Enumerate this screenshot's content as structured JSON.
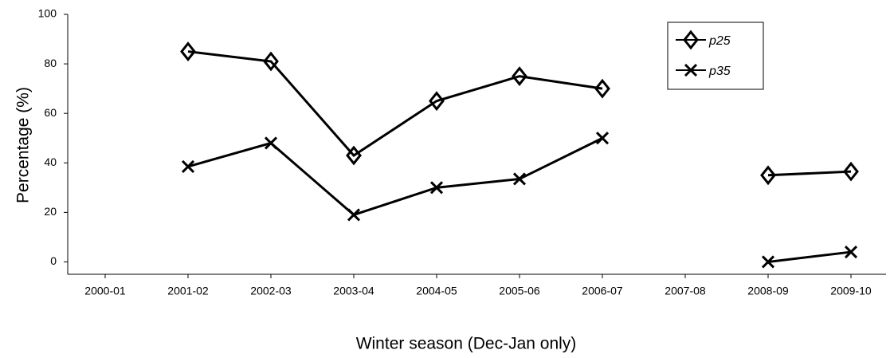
{
  "chart_data": {
    "type": "line",
    "xlabel": "Winter season (Dec-Jan only)",
    "ylabel": "Percentage (%)",
    "categories": [
      "2000-01",
      "2001-02",
      "2002-03",
      "2003-04",
      "2004-05",
      "2005-06",
      "2006-07",
      "2007-08",
      "2008-09",
      "2009-10"
    ],
    "series": [
      {
        "name": "p25",
        "color": "#000000",
        "marker": "diamond",
        "values": [
          null,
          85,
          81,
          43,
          65,
          75,
          70,
          null,
          35,
          36.5
        ]
      },
      {
        "name": "p35",
        "color": "#000000",
        "marker": "x",
        "values": [
          null,
          38.5,
          48,
          19,
          30,
          33.5,
          50,
          null,
          0,
          4
        ]
      }
    ],
    "ylim": [
      -5,
      100
    ],
    "yticks": [
      0,
      20,
      40,
      60,
      80,
      100
    ],
    "grid": false,
    "legend": "upper right"
  }
}
